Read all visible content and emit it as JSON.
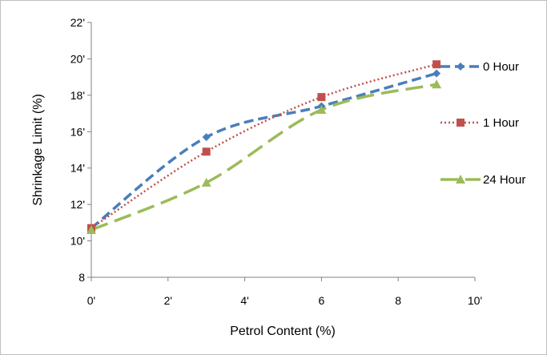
{
  "chart_data": {
    "type": "line",
    "xlabel": "Petrol Content (%)",
    "ylabel": "Shrinkage Limit (%)",
    "xlim": [
      0,
      10
    ],
    "ylim": [
      8,
      22
    ],
    "x_ticks": [
      0,
      2,
      4,
      6,
      8,
      10
    ],
    "y_ticks": [
      8,
      10,
      12,
      14,
      16,
      18,
      20,
      22
    ],
    "x_tick_labels": [
      "0'",
      "2'",
      "4'",
      "6",
      "8",
      "10'"
    ],
    "y_tick_labels": [
      "8",
      "10'",
      "12'",
      "14'",
      "16'",
      "18'",
      "20'",
      "22'"
    ],
    "grid": false,
    "legend_position": "right",
    "series": [
      {
        "name": "0 Hour",
        "x": [
          0,
          3,
          6,
          9
        ],
        "y": [
          10.7,
          15.7,
          17.4,
          19.2
        ],
        "color": "#4a7ebb",
        "marker": "diamond",
        "dash": "dashed"
      },
      {
        "name": "1 Hour",
        "x": [
          0,
          3,
          6,
          9
        ],
        "y": [
          10.7,
          14.9,
          17.9,
          19.7
        ],
        "color": "#c0504d",
        "marker": "square",
        "dash": "dotted"
      },
      {
        "name": "24 Hour",
        "x": [
          0,
          3,
          6,
          9
        ],
        "y": [
          10.6,
          13.2,
          17.2,
          18.6
        ],
        "color": "#9bbb59",
        "marker": "triangle",
        "dash": "longdash"
      }
    ]
  }
}
